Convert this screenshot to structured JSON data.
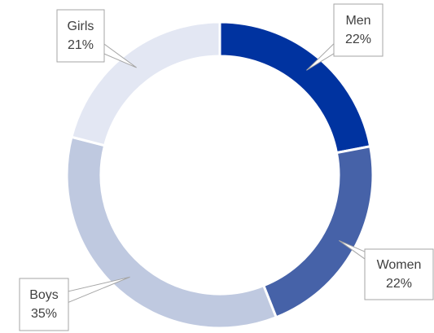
{
  "chart_data": {
    "type": "donut",
    "categories": [
      "Men",
      "Women",
      "Boys",
      "Girls"
    ],
    "values": [
      22,
      22,
      35,
      21
    ],
    "value_labels": [
      "22%",
      "22%",
      "35%",
      "21%"
    ],
    "colors": [
      "#0033a0",
      "#4662a8",
      "#bfc9e0",
      "#e3e7f3"
    ]
  }
}
